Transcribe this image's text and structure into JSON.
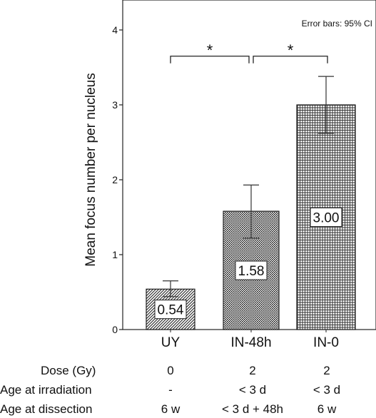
{
  "chart_data": {
    "type": "bar",
    "ylabel": "Mean focus number per nucleus",
    "ylim": [
      0,
      4.4
    ],
    "yticks": [
      0,
      1,
      2,
      3,
      4
    ],
    "grid": false,
    "annotation": "Error bars: 95% CI",
    "categories": [
      "UY",
      "IN-48h",
      "IN-0"
    ],
    "values": [
      0.54,
      1.58,
      3.0
    ],
    "value_labels": [
      "0.54",
      "1.58",
      "3.00"
    ],
    "error_low": [
      0.44,
      1.22,
      2.62
    ],
    "error_high": [
      0.65,
      1.93,
      3.38
    ],
    "significance": [
      {
        "from": 0,
        "to": 1,
        "label": "*",
        "y": 3.65
      },
      {
        "from": 1,
        "to": 2,
        "label": "*",
        "y": 3.65
      }
    ]
  },
  "conditions_table": {
    "rows": [
      {
        "label": "Dose (Gy)",
        "values": [
          "0",
          "2",
          "2"
        ]
      },
      {
        "label": "Age at irradiation",
        "values": [
          "-",
          "< 3 d",
          "< 3 d"
        ]
      },
      {
        "label": "Age at dissection",
        "values": [
          "6 w",
          "< 3 d + 48h",
          "6 w"
        ]
      }
    ]
  },
  "colors": {
    "bar_fill": "#ffffff",
    "bar_stroke": "#222222",
    "pattern_line": "#333333"
  }
}
